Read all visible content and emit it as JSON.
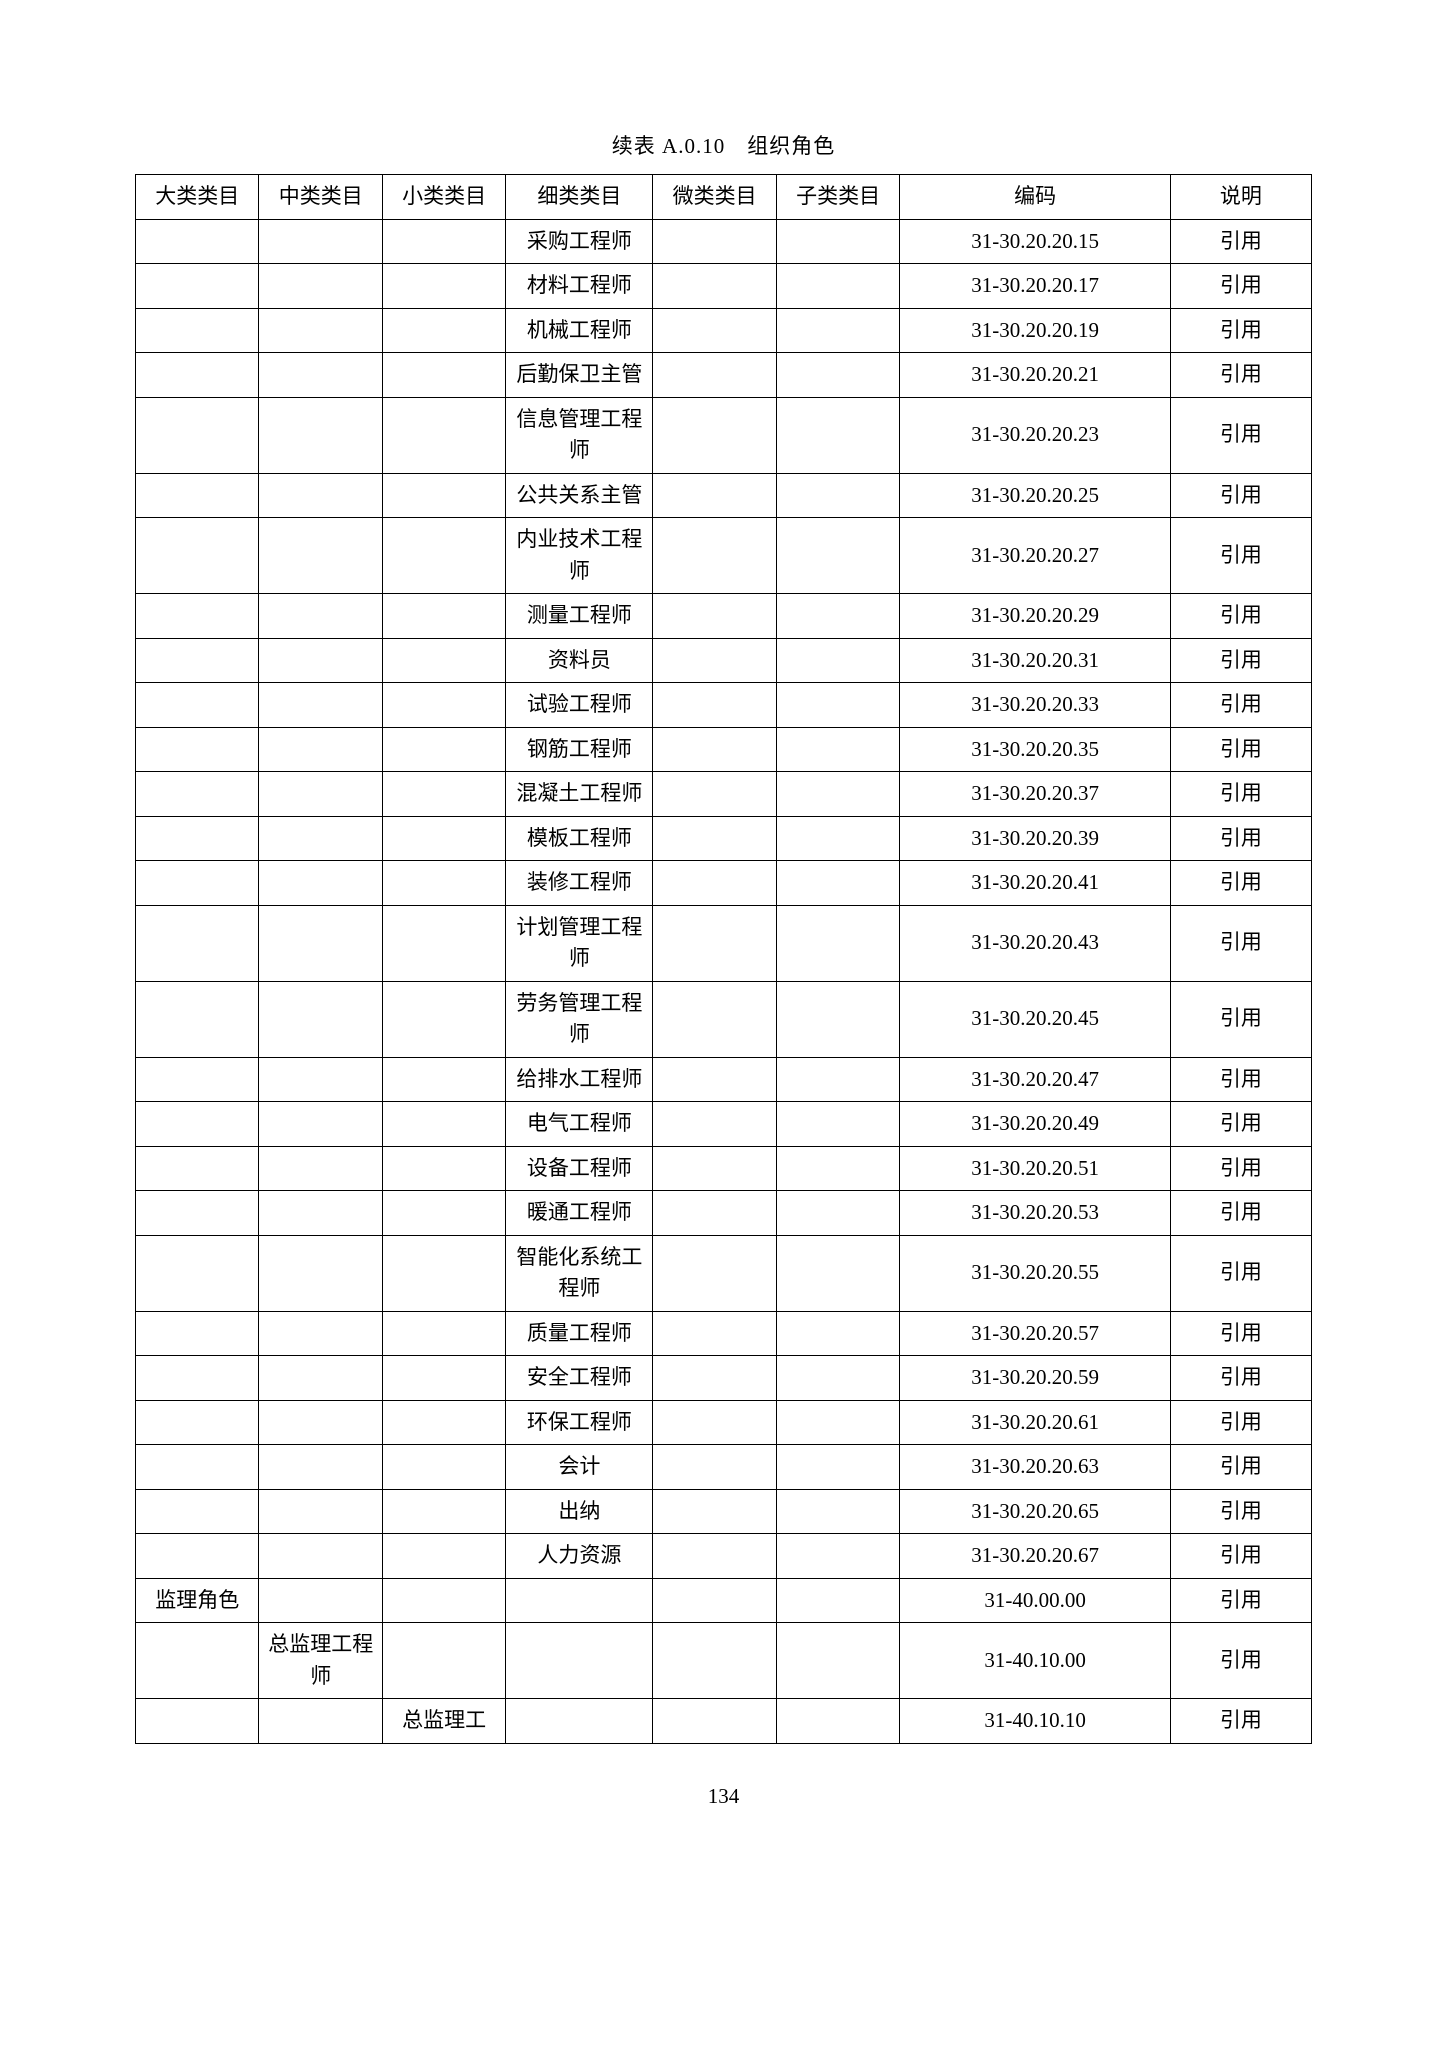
{
  "title": "续表 A.0.10　组织角色",
  "pageNumber": "134",
  "columns": [
    "大类类目",
    "中类类目",
    "小类类目",
    "细类类目",
    "微类类目",
    "子类类目",
    "编码",
    "说明"
  ],
  "rows": [
    [
      "",
      "",
      "",
      "采购工程师",
      "",
      "",
      "31-30.20.20.15",
      "引用"
    ],
    [
      "",
      "",
      "",
      "材料工程师",
      "",
      "",
      "31-30.20.20.17",
      "引用"
    ],
    [
      "",
      "",
      "",
      "机械工程师",
      "",
      "",
      "31-30.20.20.19",
      "引用"
    ],
    [
      "",
      "",
      "",
      "后勤保卫主管",
      "",
      "",
      "31-30.20.20.21",
      "引用"
    ],
    [
      "",
      "",
      "",
      "信息管理工程师",
      "",
      "",
      "31-30.20.20.23",
      "引用"
    ],
    [
      "",
      "",
      "",
      "公共关系主管",
      "",
      "",
      "31-30.20.20.25",
      "引用"
    ],
    [
      "",
      "",
      "",
      "内业技术工程师",
      "",
      "",
      "31-30.20.20.27",
      "引用"
    ],
    [
      "",
      "",
      "",
      "测量工程师",
      "",
      "",
      "31-30.20.20.29",
      "引用"
    ],
    [
      "",
      "",
      "",
      "资料员",
      "",
      "",
      "31-30.20.20.31",
      "引用"
    ],
    [
      "",
      "",
      "",
      "试验工程师",
      "",
      "",
      "31-30.20.20.33",
      "引用"
    ],
    [
      "",
      "",
      "",
      "钢筋工程师",
      "",
      "",
      "31-30.20.20.35",
      "引用"
    ],
    [
      "",
      "",
      "",
      "混凝土工程师",
      "",
      "",
      "31-30.20.20.37",
      "引用"
    ],
    [
      "",
      "",
      "",
      "模板工程师",
      "",
      "",
      "31-30.20.20.39",
      "引用"
    ],
    [
      "",
      "",
      "",
      "装修工程师",
      "",
      "",
      "31-30.20.20.41",
      "引用"
    ],
    [
      "",
      "",
      "",
      "计划管理工程师",
      "",
      "",
      "31-30.20.20.43",
      "引用"
    ],
    [
      "",
      "",
      "",
      "劳务管理工程师",
      "",
      "",
      "31-30.20.20.45",
      "引用"
    ],
    [
      "",
      "",
      "",
      "给排水工程师",
      "",
      "",
      "31-30.20.20.47",
      "引用"
    ],
    [
      "",
      "",
      "",
      "电气工程师",
      "",
      "",
      "31-30.20.20.49",
      "引用"
    ],
    [
      "",
      "",
      "",
      "设备工程师",
      "",
      "",
      "31-30.20.20.51",
      "引用"
    ],
    [
      "",
      "",
      "",
      "暖通工程师",
      "",
      "",
      "31-30.20.20.53",
      "引用"
    ],
    [
      "",
      "",
      "",
      "智能化系统工程师",
      "",
      "",
      "31-30.20.20.55",
      "引用"
    ],
    [
      "",
      "",
      "",
      "质量工程师",
      "",
      "",
      "31-30.20.20.57",
      "引用"
    ],
    [
      "",
      "",
      "",
      "安全工程师",
      "",
      "",
      "31-30.20.20.59",
      "引用"
    ],
    [
      "",
      "",
      "",
      "环保工程师",
      "",
      "",
      "31-30.20.20.61",
      "引用"
    ],
    [
      "",
      "",
      "",
      "会计",
      "",
      "",
      "31-30.20.20.63",
      "引用"
    ],
    [
      "",
      "",
      "",
      "出纳",
      "",
      "",
      "31-30.20.20.65",
      "引用"
    ],
    [
      "",
      "",
      "",
      "人力资源",
      "",
      "",
      "31-30.20.20.67",
      "引用"
    ],
    [
      "监理角色",
      "",
      "",
      "",
      "",
      "",
      "31-40.00.00",
      "引用"
    ],
    [
      "",
      "总监理工程师",
      "",
      "",
      "",
      "",
      "31-40.10.00",
      "引用"
    ],
    [
      "",
      "",
      "总监理工",
      "",
      "",
      "",
      "31-40.10.10",
      "引用"
    ]
  ],
  "style": {
    "font_family": "SimSun",
    "font_size_pt": 16,
    "background_color": "#ffffff",
    "border_color": "#000000",
    "text_color": "#000000",
    "col_widths_pct": [
      10.5,
      10.5,
      10.5,
      12.5,
      10.5,
      10.5,
      23,
      12
    ]
  }
}
